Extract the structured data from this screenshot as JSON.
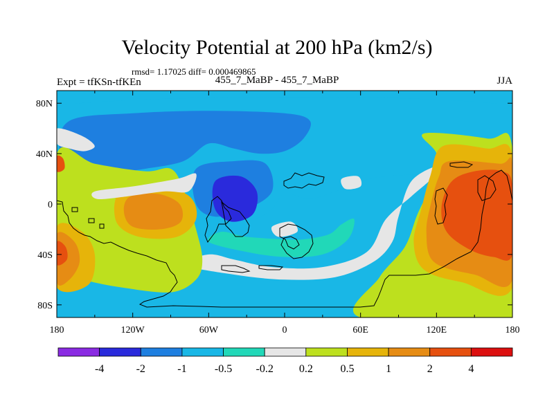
{
  "chart_data": {
    "type": "heatmap",
    "title": "Velocity Potential at 200 hPa (km2/s)",
    "stats_text": "rmsd= 1.17025 diff= 0.000469865",
    "left_label": "Expt = tfKSn-tfKEn",
    "center_label": "455_7_MaBP - 455_7_MaBP",
    "right_label": "JJA",
    "x_ticks": [
      {
        "value": -180,
        "label": "180"
      },
      {
        "value": -120,
        "label": "120W"
      },
      {
        "value": -60,
        "label": "60W"
      },
      {
        "value": 0,
        "label": "0"
      },
      {
        "value": 60,
        "label": "60E"
      },
      {
        "value": 120,
        "label": "120E"
      },
      {
        "value": 180,
        "label": "180"
      }
    ],
    "y_ticks": [
      {
        "value": 80,
        "label": "80N"
      },
      {
        "value": 40,
        "label": "40N"
      },
      {
        "value": 0,
        "label": "0"
      },
      {
        "value": -40,
        "label": "40S"
      },
      {
        "value": -80,
        "label": "80S"
      }
    ],
    "xlim": [
      -180,
      180
    ],
    "ylim": [
      -90,
      90
    ],
    "colorbar": {
      "colors": [
        "#8a2be2",
        "#2a2adc",
        "#1e7fe0",
        "#19b7e6",
        "#21d8b8",
        "#e6e6e6",
        "#bde01e",
        "#e6b40a",
        "#e68c14",
        "#e6500f",
        "#dc0f0f"
      ],
      "levels": [
        -4,
        -2,
        -1,
        -0.5,
        -0.2,
        0.2,
        0.5,
        1,
        2,
        4
      ],
      "level_labels": [
        "-4",
        "-2",
        "-1",
        "-0.5",
        "-0.2",
        "0.2",
        "0.5",
        "1",
        "2",
        "4"
      ]
    },
    "fields": [
      {
        "name": "lightblue-northern-band",
        "value": -0.7,
        "color": "#19b7e6",
        "points": [
          [
            -180,
            78
          ],
          [
            180,
            78
          ],
          [
            180,
            18
          ],
          [
            150,
            28
          ],
          [
            110,
            24
          ],
          [
            80,
            22
          ],
          [
            60,
            18
          ],
          [
            40,
            10
          ],
          [
            20,
            4
          ],
          [
            0,
            8
          ],
          [
            -10,
            -4
          ],
          [
            -25,
            -12
          ],
          [
            -55,
            -14
          ],
          [
            -70,
            10
          ],
          [
            -100,
            18
          ],
          [
            -140,
            22
          ],
          [
            -170,
            24
          ],
          [
            -180,
            26
          ]
        ]
      },
      {
        "name": "blue-north-pacific",
        "value": -1.5,
        "color": "#1e7fe0",
        "points": [
          [
            -170,
            66
          ],
          [
            -120,
            72
          ],
          [
            -60,
            74
          ],
          [
            0,
            72
          ],
          [
            20,
            66
          ],
          [
            15,
            52
          ],
          [
            0,
            42
          ],
          [
            -20,
            40
          ],
          [
            -40,
            44
          ],
          [
            -60,
            48
          ],
          [
            -80,
            34
          ],
          [
            -110,
            28
          ],
          [
            -140,
            24
          ],
          [
            -170,
            22
          ],
          [
            -178,
            40
          ]
        ]
      },
      {
        "name": "blue-south-atlantic",
        "value": -1.5,
        "color": "#1e7fe0",
        "points": [
          [
            -70,
            28
          ],
          [
            -40,
            34
          ],
          [
            -15,
            32
          ],
          [
            -10,
            10
          ],
          [
            -30,
            -4
          ],
          [
            -55,
            -10
          ],
          [
            -70,
            0
          ]
        ]
      },
      {
        "name": "darkblue-atlantic-core",
        "value": -3,
        "color": "#2a2adc",
        "points": [
          [
            -55,
            18
          ],
          [
            -35,
            22
          ],
          [
            -22,
            10
          ],
          [
            -25,
            -8
          ],
          [
            -42,
            -14
          ],
          [
            -55,
            -4
          ]
        ]
      },
      {
        "name": "darkblue-pacific-spot",
        "value": -3,
        "color": "#2a2adc",
        "points": [
          [
            -150,
            17
          ],
          [
            -138,
            16
          ],
          [
            -137,
            10
          ],
          [
            -148,
            9
          ]
        ]
      },
      {
        "name": "teal-southern-ribbon",
        "value": -0.35,
        "color": "#21d8b8",
        "points": [
          [
            -60,
            -30
          ],
          [
            -30,
            -38
          ],
          [
            0,
            -42
          ],
          [
            30,
            -40
          ],
          [
            50,
            -28
          ],
          [
            55,
            -12
          ],
          [
            45,
            -16
          ],
          [
            35,
            -24
          ],
          [
            15,
            -28
          ],
          [
            0,
            -28
          ],
          [
            -30,
            -26
          ],
          [
            -50,
            -22
          ]
        ]
      },
      {
        "name": "white-southern-band",
        "value": 0,
        "color": "#e6e6e6",
        "points": [
          [
            -80,
            -48
          ],
          [
            -40,
            -56
          ],
          [
            0,
            -60
          ],
          [
            40,
            -58
          ],
          [
            70,
            -46
          ],
          [
            85,
            -30
          ],
          [
            90,
            -10
          ],
          [
            100,
            18
          ],
          [
            120,
            30
          ],
          [
            118,
            22
          ],
          [
            100,
            6
          ],
          [
            80,
            -12
          ],
          [
            65,
            -38
          ],
          [
            30,
            -50
          ],
          [
            -10,
            -50
          ],
          [
            -40,
            -44
          ],
          [
            -60,
            -40
          ]
        ]
      },
      {
        "name": "yellowgreen-western",
        "value": 0.35,
        "color": "#bde01e",
        "points": [
          [
            -180,
            40
          ],
          [
            -150,
            32
          ],
          [
            -110,
            26
          ],
          [
            -90,
            28
          ],
          [
            -80,
            12
          ],
          [
            -70,
            -20
          ],
          [
            -65,
            -44
          ],
          [
            -70,
            -60
          ],
          [
            -90,
            -70
          ],
          [
            -130,
            -66
          ],
          [
            -160,
            -60
          ],
          [
            -180,
            -54
          ]
        ]
      },
      {
        "name": "gold-central-pacific",
        "value": 0.8,
        "color": "#e6b40a",
        "points": [
          [
            -130,
            10
          ],
          [
            -100,
            14
          ],
          [
            -75,
            6
          ],
          [
            -70,
            -12
          ],
          [
            -85,
            -26
          ],
          [
            -115,
            -26
          ],
          [
            -133,
            -14
          ]
        ]
      },
      {
        "name": "orange-central-pacific",
        "value": 1.5,
        "color": "#e68c14",
        "points": [
          [
            -122,
            6
          ],
          [
            -100,
            8
          ],
          [
            -83,
            0
          ],
          [
            -82,
            -14
          ],
          [
            -98,
            -20
          ],
          [
            -120,
            -18
          ],
          [
            -127,
            -6
          ]
        ]
      },
      {
        "name": "gold-west-edge",
        "value": 0.8,
        "color": "#e6b40a",
        "points": [
          [
            -180,
            -18
          ],
          [
            -160,
            -22
          ],
          [
            -150,
            -40
          ],
          [
            -155,
            -64
          ],
          [
            -180,
            -66
          ]
        ]
      },
      {
        "name": "orange-west-edge",
        "value": 1.5,
        "color": "#e68c14",
        "points": [
          [
            -180,
            -24
          ],
          [
            -166,
            -30
          ],
          [
            -162,
            -46
          ],
          [
            -170,
            -60
          ],
          [
            -180,
            -62
          ]
        ]
      },
      {
        "name": "red-west-edge",
        "value": 3,
        "color": "#e6500f",
        "points": [
          [
            -180,
            -30
          ],
          [
            -173,
            -34
          ],
          [
            -172,
            -44
          ],
          [
            -180,
            -48
          ]
        ]
      },
      {
        "name": "red-west-north-edge",
        "value": 3,
        "color": "#e6500f",
        "points": [
          [
            -180,
            38
          ],
          [
            -175,
            36
          ],
          [
            -174,
            28
          ],
          [
            -180,
            26
          ]
        ]
      },
      {
        "name": "yellowgreen-eastern",
        "value": 0.35,
        "color": "#bde01e",
        "points": [
          [
            110,
            56
          ],
          [
            160,
            52
          ],
          [
            180,
            44
          ],
          [
            180,
            -90
          ],
          [
            60,
            -90
          ],
          [
            75,
            -58
          ],
          [
            95,
            -34
          ],
          [
            105,
            -8
          ],
          [
            118,
            20
          ],
          [
            120,
            40
          ]
        ]
      },
      {
        "name": "gold-eastern",
        "value": 0.8,
        "color": "#e6b40a",
        "points": [
          [
            125,
            46
          ],
          [
            160,
            44
          ],
          [
            180,
            38
          ],
          [
            180,
            -66
          ],
          [
            140,
            -62
          ],
          [
            110,
            -52
          ],
          [
            102,
            -30
          ],
          [
            108,
            -4
          ],
          [
            115,
            22
          ]
        ]
      },
      {
        "name": "orange-eastern",
        "value": 1.5,
        "color": "#e68c14",
        "points": [
          [
            130,
            34
          ],
          [
            170,
            32
          ],
          [
            180,
            30
          ],
          [
            180,
            -60
          ],
          [
            150,
            -56
          ],
          [
            118,
            -46
          ],
          [
            112,
            -22
          ],
          [
            116,
            2
          ],
          [
            122,
            22
          ]
        ]
      },
      {
        "name": "red-eastern-core",
        "value": 3,
        "color": "#e6500f",
        "points": [
          [
            150,
            26
          ],
          [
            172,
            26
          ],
          [
            180,
            14
          ],
          [
            180,
            -40
          ],
          [
            165,
            -42
          ],
          [
            146,
            -36
          ],
          [
            128,
            -22
          ],
          [
            124,
            -2
          ],
          [
            132,
            18
          ]
        ]
      },
      {
        "name": "white-north-pacific-strip",
        "value": 0,
        "color": "#e6e6e6",
        "points": [
          [
            -180,
            60
          ],
          [
            -160,
            54
          ],
          [
            -150,
            46
          ],
          [
            -158,
            42
          ],
          [
            -170,
            44
          ],
          [
            -180,
            48
          ]
        ]
      },
      {
        "name": "white-north-america-gap",
        "value": 0,
        "color": "#e6e6e6",
        "points": [
          [
            -150,
            10
          ],
          [
            -120,
            14
          ],
          [
            -85,
            20
          ],
          [
            -70,
            24
          ],
          [
            -76,
            10
          ],
          [
            -95,
            10
          ],
          [
            -125,
            6
          ],
          [
            -148,
            4
          ]
        ]
      },
      {
        "name": "white-indian-spot",
        "value": 0,
        "color": "#e6e6e6",
        "points": [
          [
            45,
            20
          ],
          [
            58,
            22
          ],
          [
            60,
            14
          ],
          [
            48,
            12
          ]
        ]
      },
      {
        "name": "white-africa-spot",
        "value": 0,
        "color": "#e6e6e6",
        "points": [
          [
            -10,
            -18
          ],
          [
            5,
            -14
          ],
          [
            10,
            -22
          ],
          [
            -5,
            -26
          ]
        ]
      }
    ]
  }
}
